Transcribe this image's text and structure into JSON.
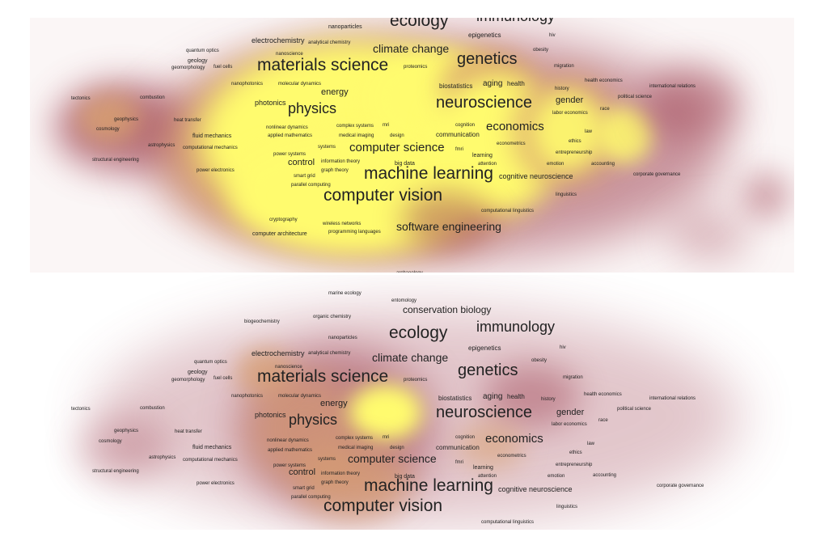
{
  "maps": [
    {
      "id": "top",
      "terms": [
        {
          "text": "nanoparticles",
          "s": 7
        },
        {
          "text": "ecology",
          "s": 21
        },
        {
          "text": "immunology",
          "s": 18
        },
        {
          "text": "epigenetics",
          "s": 8
        },
        {
          "text": "hiv",
          "s": 6
        },
        {
          "text": "electrochemistry",
          "s": 9
        },
        {
          "text": "analytical chemistry",
          "s": 6
        },
        {
          "text": "quantum optics",
          "s": 6
        },
        {
          "text": "nanoscience",
          "s": 6
        },
        {
          "text": "climate change",
          "s": 14
        },
        {
          "text": "obesity",
          "s": 6
        },
        {
          "text": "geology",
          "s": 7
        },
        {
          "text": "geomorphology",
          "s": 6
        },
        {
          "text": "fuel cells",
          "s": 6
        },
        {
          "text": "materials science",
          "s": 21
        },
        {
          "text": "genetics",
          "s": 20
        },
        {
          "text": "proteomics",
          "s": 6
        },
        {
          "text": "migration",
          "s": 6
        },
        {
          "text": "nanophotonics",
          "s": 6
        },
        {
          "text": "molecular dynamics",
          "s": 6
        },
        {
          "text": "biostatistics",
          "s": 8
        },
        {
          "text": "aging",
          "s": 10
        },
        {
          "text": "health",
          "s": 8
        },
        {
          "text": "history",
          "s": 6
        },
        {
          "text": "health economics",
          "s": 6
        },
        {
          "text": "international relations",
          "s": 6
        },
        {
          "text": "energy",
          "s": 11
        },
        {
          "text": "tectonics",
          "s": 6
        },
        {
          "text": "combustion",
          "s": 6
        },
        {
          "text": "political science",
          "s": 6
        },
        {
          "text": "photonics",
          "s": 9
        },
        {
          "text": "neuroscience",
          "s": 20
        },
        {
          "text": "gender",
          "s": 11
        },
        {
          "text": "physics",
          "s": 18
        },
        {
          "text": "labor economics",
          "s": 6
        },
        {
          "text": "race",
          "s": 6
        },
        {
          "text": "geophysics",
          "s": 6
        },
        {
          "text": "heat transfer",
          "s": 6
        },
        {
          "text": "mri",
          "s": 6
        },
        {
          "text": "cosmology",
          "s": 6
        },
        {
          "text": "nonlinear dynamics",
          "s": 6
        },
        {
          "text": "complex systems",
          "s": 6
        },
        {
          "text": "cognition",
          "s": 6
        },
        {
          "text": "economics",
          "s": 15
        },
        {
          "text": "law",
          "s": 6
        },
        {
          "text": "fluid mechanics",
          "s": 7
        },
        {
          "text": "applied mathematics",
          "s": 6
        },
        {
          "text": "medical imaging",
          "s": 6
        },
        {
          "text": "design",
          "s": 6
        },
        {
          "text": "communication",
          "s": 8
        },
        {
          "text": "ethics",
          "s": 6
        },
        {
          "text": "econometrics",
          "s": 6
        },
        {
          "text": "astrophysics",
          "s": 6
        },
        {
          "text": "computational mechanics",
          "s": 6
        },
        {
          "text": "systems",
          "s": 6
        },
        {
          "text": "power systems",
          "s": 6
        },
        {
          "text": "computer science",
          "s": 15
        },
        {
          "text": "fmri",
          "s": 6
        },
        {
          "text": "entrepreneurship",
          "s": 6
        },
        {
          "text": "learning",
          "s": 7
        },
        {
          "text": "structural engineering",
          "s": 6
        },
        {
          "text": "information theory",
          "s": 6
        },
        {
          "text": "big data",
          "s": 7
        },
        {
          "text": "attention",
          "s": 6
        },
        {
          "text": "emotion",
          "s": 6
        },
        {
          "text": "accounting",
          "s": 6
        },
        {
          "text": "control",
          "s": 11
        },
        {
          "text": "power electronics",
          "s": 6
        },
        {
          "text": "graph theory",
          "s": 6
        },
        {
          "text": "corporate governance",
          "s": 6
        },
        {
          "text": "smart grid",
          "s": 6
        },
        {
          "text": "machine learning",
          "s": 21
        },
        {
          "text": "cognitive neuroscience",
          "s": 9
        },
        {
          "text": "parallel computing",
          "s": 6
        },
        {
          "text": "linguistics",
          "s": 6
        },
        {
          "text": "computer vision",
          "s": 21
        },
        {
          "text": "computational linguistics",
          "s": 6
        },
        {
          "text": "cryptography",
          "s": 6
        },
        {
          "text": "wireless networks",
          "s": 6
        },
        {
          "text": "software engineering",
          "s": 14
        },
        {
          "text": "programming languages",
          "s": 6
        },
        {
          "text": "computer architecture",
          "s": 7
        },
        {
          "text": "archaeology",
          "s": 6
        }
      ]
    },
    {
      "id": "bottom",
      "terms": [
        {
          "text": "marine ecology",
          "s": 6
        },
        {
          "text": "entomology",
          "s": 6
        },
        {
          "text": "conservation biology",
          "s": 12
        },
        {
          "text": "organic chemistry",
          "s": 6
        },
        {
          "text": "biogeochemistry",
          "s": 6
        },
        {
          "text": "immunology",
          "s": 18
        },
        {
          "text": "nanoparticles",
          "s": 6
        },
        {
          "text": "ecology",
          "s": 21
        },
        {
          "text": "epigenetics",
          "s": 8
        },
        {
          "text": "hiv",
          "s": 6
        },
        {
          "text": "electrochemistry",
          "s": 9
        },
        {
          "text": "analytical chemistry",
          "s": 6
        },
        {
          "text": "climate change",
          "s": 14
        },
        {
          "text": "quantum optics",
          "s": 6
        },
        {
          "text": "nanoscience",
          "s": 6
        },
        {
          "text": "obesity",
          "s": 6
        },
        {
          "text": "geology",
          "s": 7
        },
        {
          "text": "genetics",
          "s": 20
        },
        {
          "text": "geomorphology",
          "s": 6
        },
        {
          "text": "fuel cells",
          "s": 6
        },
        {
          "text": "materials science",
          "s": 21
        },
        {
          "text": "proteomics",
          "s": 6
        },
        {
          "text": "migration",
          "s": 6
        },
        {
          "text": "health economics",
          "s": 6
        },
        {
          "text": "nanophotonics",
          "s": 6
        },
        {
          "text": "molecular dynamics",
          "s": 6
        },
        {
          "text": "biostatistics",
          "s": 8
        },
        {
          "text": "aging",
          "s": 10
        },
        {
          "text": "health",
          "s": 8
        },
        {
          "text": "history",
          "s": 6
        },
        {
          "text": "international relations",
          "s": 6
        },
        {
          "text": "tectonics",
          "s": 6
        },
        {
          "text": "combustion",
          "s": 6
        },
        {
          "text": "energy",
          "s": 11
        },
        {
          "text": "political science",
          "s": 6
        },
        {
          "text": "photonics",
          "s": 9
        },
        {
          "text": "neuroscience",
          "s": 20
        },
        {
          "text": "gender",
          "s": 11
        },
        {
          "text": "physics",
          "s": 18
        },
        {
          "text": "labor economics",
          "s": 6
        },
        {
          "text": "race",
          "s": 6
        },
        {
          "text": "geophysics",
          "s": 6
        },
        {
          "text": "heat transfer",
          "s": 6
        },
        {
          "text": "cosmology",
          "s": 6
        },
        {
          "text": "nonlinear dynamics",
          "s": 6
        },
        {
          "text": "complex systems",
          "s": 6
        },
        {
          "text": "mri",
          "s": 6
        },
        {
          "text": "cognition",
          "s": 6
        },
        {
          "text": "economics",
          "s": 15
        },
        {
          "text": "fluid mechanics",
          "s": 7
        },
        {
          "text": "applied mathematics",
          "s": 6
        },
        {
          "text": "medical imaging",
          "s": 6
        },
        {
          "text": "design",
          "s": 6
        },
        {
          "text": "communication",
          "s": 8
        },
        {
          "text": "law",
          "s": 6
        },
        {
          "text": "astrophysics",
          "s": 6
        },
        {
          "text": "computational mechanics",
          "s": 6
        },
        {
          "text": "systems",
          "s": 6
        },
        {
          "text": "econometrics",
          "s": 6
        },
        {
          "text": "ethics",
          "s": 6
        },
        {
          "text": "power systems",
          "s": 6
        },
        {
          "text": "computer science",
          "s": 14
        },
        {
          "text": "fmri",
          "s": 6
        },
        {
          "text": "learning",
          "s": 7
        },
        {
          "text": "entrepreneurship",
          "s": 6
        },
        {
          "text": "structural engineering",
          "s": 6
        },
        {
          "text": "information theory",
          "s": 6
        },
        {
          "text": "control",
          "s": 11
        },
        {
          "text": "big data",
          "s": 7
        },
        {
          "text": "attention",
          "s": 6
        },
        {
          "text": "emotion",
          "s": 6
        },
        {
          "text": "accounting",
          "s": 6
        },
        {
          "text": "graph theory",
          "s": 6
        },
        {
          "text": "power electronics",
          "s": 6
        },
        {
          "text": "corporate governance",
          "s": 6
        },
        {
          "text": "smart grid",
          "s": 6
        },
        {
          "text": "machine learning",
          "s": 21
        },
        {
          "text": "cognitive neuroscience",
          "s": 9
        },
        {
          "text": "parallel computing",
          "s": 6
        },
        {
          "text": "linguistics",
          "s": 6
        },
        {
          "text": "computer vision",
          "s": 21
        },
        {
          "text": "computational linguistics",
          "s": 6
        }
      ]
    }
  ],
  "colors": {
    "hot": "#fffb6e",
    "warm": "#d8a070",
    "cool": "#a04555",
    "text": "#222222"
  }
}
